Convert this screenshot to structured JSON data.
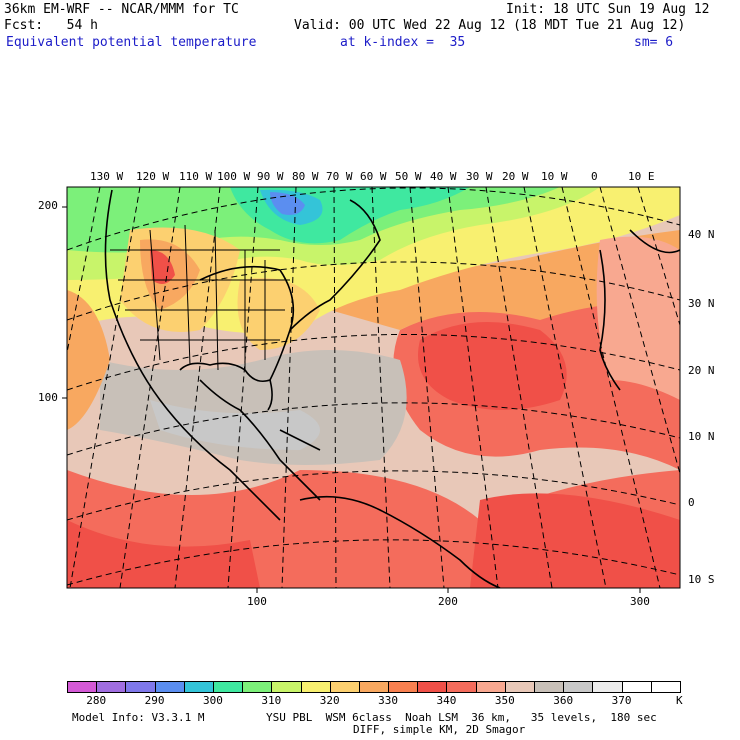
{
  "header": {
    "model": "36km EM-WRF -- NCAR/MMM for TC",
    "init": "Init: 18 UTC Sun 19 Aug 12",
    "fcst": "Fcst:   54 h",
    "valid": "Valid: 00 UTC Wed 22 Aug 12 (18 MDT Tue 21 Aug 12)",
    "field": "Equivalent potential temperature",
    "level": "at k-index =  35",
    "smooth": "sm= 6"
  },
  "map": {
    "lon_labels": [
      "130 W",
      "120 W",
      "110 W",
      "100 W",
      "90 W",
      "80 W",
      "70 W",
      "60 W",
      "50 W",
      "40 W",
      "30 W",
      "20 W",
      "10 W",
      "0",
      "10 E"
    ],
    "lat_labels": [
      "40 N",
      "30 N",
      "20 N",
      "10 N",
      "0",
      "10 S"
    ],
    "grid_y_labels": [
      "200",
      "100"
    ],
    "grid_x_labels": [
      "100",
      "200",
      "300"
    ]
  },
  "colorbar": {
    "unit": "K",
    "ticks": [
      "280",
      "290",
      "300",
      "310",
      "320",
      "330",
      "340",
      "350",
      "360",
      "370"
    ],
    "colors": [
      "#d45ad6",
      "#a06ee0",
      "#7f78ea",
      "#5b8ef0",
      "#34c4d8",
      "#3fe8a0",
      "#7cf07a",
      "#c8f46a",
      "#f8f070",
      "#fcd070",
      "#f8a860",
      "#f88050",
      "#f05048",
      "#f46c5c",
      "#f8a890",
      "#e8c8b8",
      "#c8c0b8",
      "#c8c8c8",
      "#ececec",
      "#ffffff",
      "#ffffff"
    ]
  },
  "footer": {
    "model_info": "Model Info: V3.3.1 M",
    "physics": "YSU PBL  WSM 6class  Noah LSM  36 km,   35 levels,  180 sec",
    "diff": "DIFF, simple KM, 2D Smagor"
  }
}
